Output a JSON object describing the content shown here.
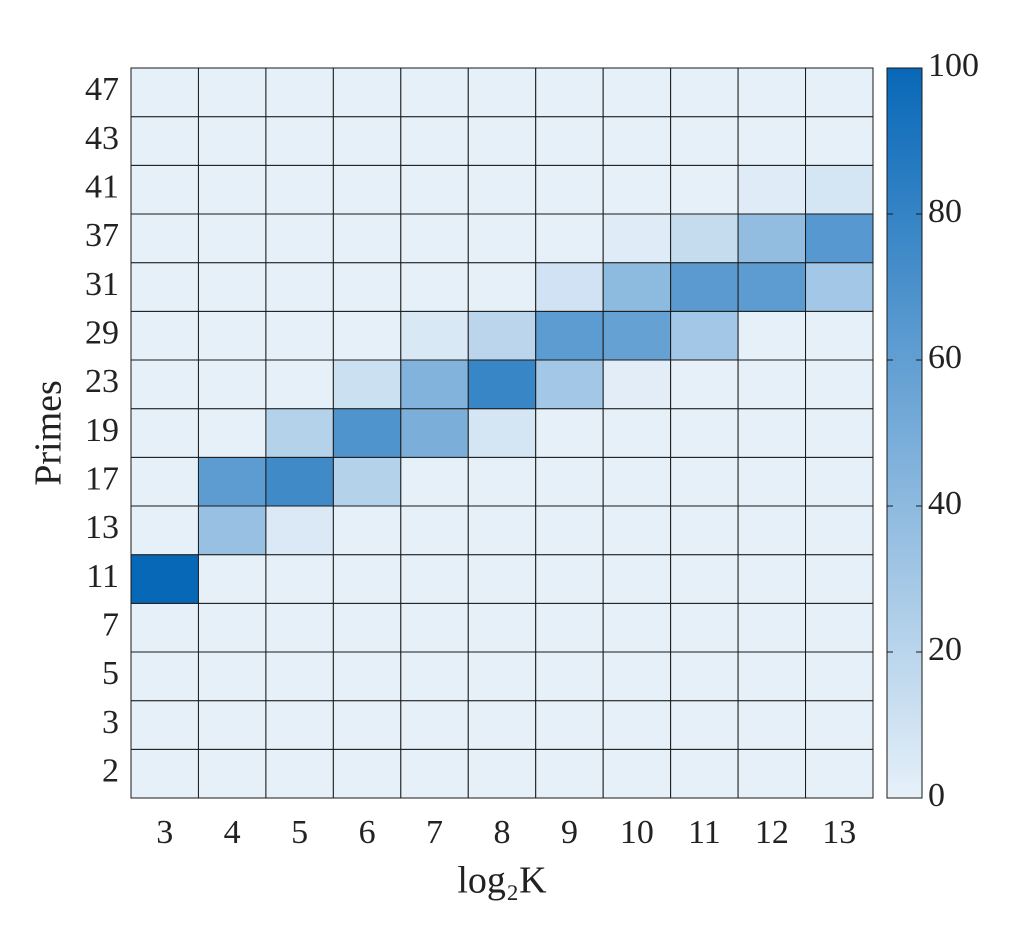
{
  "chart_data": {
    "type": "heatmap",
    "x_label": "log₂K",
    "y_label": "Primes",
    "x_categories": [
      "3",
      "4",
      "5",
      "6",
      "7",
      "8",
      "9",
      "10",
      "11",
      "12",
      "13"
    ],
    "y_categories": [
      "2",
      "3",
      "5",
      "7",
      "11",
      "13",
      "17",
      "19",
      "23",
      "29",
      "31",
      "37",
      "41",
      "43",
      "47"
    ],
    "values": [
      [
        0,
        0,
        0,
        0,
        0,
        0,
        0,
        0,
        0,
        0,
        0
      ],
      [
        0,
        0,
        0,
        0,
        0,
        0,
        0,
        0,
        0,
        0,
        0
      ],
      [
        0,
        0,
        0,
        0,
        0,
        0,
        0,
        0,
        0,
        0,
        0
      ],
      [
        0,
        0,
        0,
        0,
        0,
        0,
        0,
        0,
        0,
        0,
        0
      ],
      [
        100,
        0,
        0,
        0,
        0,
        0,
        0,
        0,
        0,
        0,
        0
      ],
      [
        0,
        35,
        5,
        0,
        0,
        0,
        0,
        0,
        0,
        0,
        0
      ],
      [
        0,
        62,
        75,
        22,
        0,
        0,
        0,
        0,
        0,
        0,
        0
      ],
      [
        0,
        0,
        22,
        68,
        48,
        8,
        0,
        0,
        0,
        0,
        0
      ],
      [
        0,
        0,
        0,
        12,
        45,
        78,
        30,
        2,
        0,
        0,
        0
      ],
      [
        0,
        0,
        0,
        0,
        6,
        20,
        62,
        58,
        30,
        0,
        0
      ],
      [
        0,
        0,
        0,
        0,
        0,
        0,
        10,
        40,
        63,
        62,
        30
      ],
      [
        0,
        0,
        0,
        0,
        0,
        0,
        0,
        3,
        15,
        38,
        65
      ],
      [
        0,
        0,
        0,
        0,
        0,
        0,
        0,
        0,
        0,
        3,
        8
      ],
      [
        0,
        0,
        0,
        0,
        0,
        0,
        0,
        0,
        0,
        0,
        0
      ],
      [
        0,
        0,
        0,
        0,
        0,
        0,
        0,
        0,
        0,
        0,
        0
      ]
    ],
    "colormap": [
      "#e6f0f9",
      "#0868b8"
    ],
    "clim": [
      0,
      100
    ],
    "cticks": [
      0,
      20,
      40,
      60,
      80,
      100
    ]
  }
}
